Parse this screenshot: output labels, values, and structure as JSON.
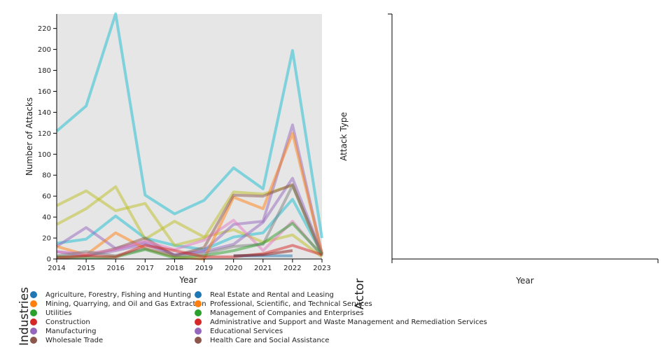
{
  "chart_data": [
    {
      "type": "line",
      "xlabel": "Year",
      "ylabel": "Number of Attacks",
      "x": [
        2014,
        2015,
        2016,
        2017,
        2018,
        2019,
        2020,
        2021,
        2022,
        2023
      ],
      "xticks": [
        "2014",
        "2015",
        "2016",
        "2017",
        "2018",
        "2019",
        "2020",
        "2021",
        "2022",
        "2023"
      ],
      "yticks": [
        "0",
        "20",
        "40",
        "60",
        "80",
        "100",
        "120",
        "140",
        "160",
        "180",
        "200",
        "220"
      ],
      "ylim": [
        0,
        235
      ],
      "grid": false,
      "series": [
        {
          "name": "cyan-1",
          "color": "#17becf",
          "values": [
            122,
            146,
            234,
            61,
            43,
            56,
            87,
            67,
            199,
            20
          ]
        },
        {
          "name": "cyan-2",
          "color": "#17becf",
          "values": [
            15,
            19,
            41,
            20,
            13,
            9,
            21,
            25,
            57,
            5
          ]
        },
        {
          "name": "olive-1",
          "color": "#bcbd22",
          "values": [
            51,
            65,
            46,
            53,
            13,
            20,
            64,
            62,
            70,
            3
          ]
        },
        {
          "name": "olive-2",
          "color": "#bcbd22",
          "values": [
            33,
            48,
            69,
            19,
            36,
            21,
            28,
            16,
            23,
            2
          ]
        },
        {
          "name": "purple-1",
          "color": "#9467bd",
          "values": [
            12,
            30,
            10,
            16,
            4,
            8,
            33,
            36,
            128,
            5
          ]
        },
        {
          "name": "purple-2",
          "color": "#9467bd",
          "values": [
            7,
            3,
            8,
            14,
            4,
            7,
            14,
            35,
            77,
            5
          ]
        },
        {
          "name": "orange-1",
          "color": "#ff7f0e",
          "values": [
            12,
            4,
            25,
            10,
            2,
            0,
            59,
            48,
            120,
            5
          ]
        },
        {
          "name": "brown-1",
          "color": "#8c564b",
          "values": [
            2,
            3,
            10,
            20,
            3,
            11,
            61,
            60,
            71,
            4
          ]
        },
        {
          "name": "pink-1",
          "color": "#e377c2",
          "values": [
            7,
            5,
            9,
            17,
            9,
            18,
            37,
            8,
            36,
            3
          ]
        },
        {
          "name": "gray-1",
          "color": "#7f7f7f",
          "values": [
            3,
            7,
            3,
            10,
            3,
            5,
            12,
            14,
            70,
            3
          ]
        },
        {
          "name": "green-1",
          "color": "#2ca02c",
          "values": [
            2,
            1,
            2,
            9,
            1,
            3,
            8,
            15,
            34,
            4
          ]
        },
        {
          "name": "red-1",
          "color": "#d62728",
          "values": [
            1,
            3,
            2,
            13,
            8,
            2,
            2,
            5,
            13,
            4
          ]
        },
        {
          "name": "blue-1",
          "color": "#1f77b4",
          "values": [
            null,
            null,
            null,
            null,
            null,
            null,
            3,
            3,
            3,
            null
          ]
        },
        {
          "name": "darkred-1",
          "color": "#8b1a1a",
          "values": [
            null,
            null,
            null,
            null,
            null,
            null,
            3,
            4,
            8,
            null
          ]
        }
      ]
    },
    {
      "type": "line",
      "xlabel": "Year",
      "ylabel": "Attack Type",
      "series": []
    }
  ],
  "legend": {
    "title": "Industries",
    "items": [
      {
        "label": "Agriculture, Forestry, Fishing and Hunting",
        "color": "#1f77b4"
      },
      {
        "label": "Mining, Quarrying, and Oil and Gas Extraction",
        "color": "#ff7f0e"
      },
      {
        "label": "Utilities",
        "color": "#2ca02c"
      },
      {
        "label": "Construction",
        "color": "#d62728"
      },
      {
        "label": "Manufacturing",
        "color": "#9467bd"
      },
      {
        "label": "Wholesale Trade",
        "color": "#8c564b"
      },
      {
        "label": "Real Estate and Rental and Leasing",
        "color": "#1f77b4"
      },
      {
        "label": "Professional, Scientific, and Technical Services",
        "color": "#ff7f0e"
      },
      {
        "label": "Management of Companies and Enterprises",
        "color": "#2ca02c"
      },
      {
        "label": "Administrative and Support and Waste Management and Remediation Services",
        "color": "#d62728"
      },
      {
        "label": "Educational Services",
        "color": "#9467bd"
      },
      {
        "label": "Health Care and Social Assistance",
        "color": "#8c564b"
      }
    ]
  },
  "actor_label": "Actor"
}
